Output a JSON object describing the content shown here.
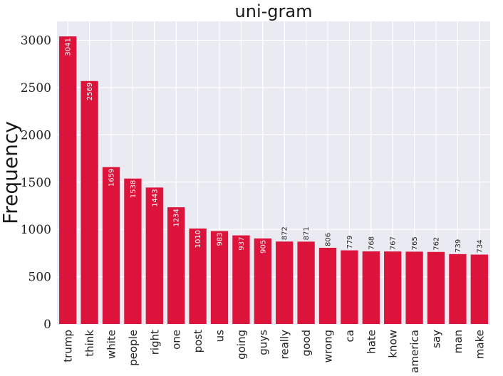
{
  "chart_data": {
    "type": "bar",
    "title": "uni-gram",
    "xlabel": "",
    "ylabel": "Frequency",
    "categories": [
      "trump",
      "think",
      "white",
      "people",
      "right",
      "one",
      "post",
      "us",
      "going",
      "guys",
      "really",
      "good",
      "wrong",
      "ca",
      "hate",
      "know",
      "america",
      "say",
      "man",
      "make"
    ],
    "values": [
      3041,
      2569,
      1659,
      1538,
      1443,
      1234,
      1010,
      983,
      937,
      905,
      872,
      871,
      806,
      779,
      768,
      767,
      765,
      762,
      739,
      734
    ],
    "data_labels": [
      "3041",
      "2569",
      "1659",
      "1538",
      "1443",
      "1234",
      "1010",
      "983",
      "937",
      "905",
      "872",
      "871",
      "806",
      "779",
      "768",
      "767",
      "765",
      "762",
      "739",
      "734"
    ],
    "yticks": [
      0,
      500,
      1000,
      1500,
      2000,
      2500,
      3000
    ],
    "ylim": [
      0,
      3200
    ],
    "grid": true,
    "colors": {
      "bar": "#DC143C",
      "background": "#EAEAF2",
      "grid": "#FFFFFF",
      "label_inside": "#FFFFFF",
      "label_outside": "#222222"
    }
  }
}
